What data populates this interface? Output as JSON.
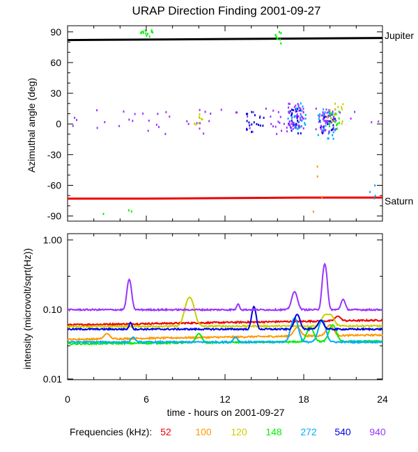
{
  "chart_data": {
    "title": "URAP Direction Finding  2001-09-27",
    "xlabel": "time - hours on 2001-09-27",
    "xlim": [
      0,
      24
    ],
    "xticks": [
      "0",
      "6",
      "12",
      "18",
      "24"
    ],
    "legend_prefix": "Frequencies (kHz):",
    "legend": [
      {
        "label": "52",
        "color": "#ee0000"
      },
      {
        "label": "100",
        "color": "#ff9900"
      },
      {
        "label": "120",
        "color": "#cccc00"
      },
      {
        "label": "148",
        "color": "#00ee00"
      },
      {
        "label": "272",
        "color": "#00aaff"
      },
      {
        "label": "540",
        "color": "#0000dd"
      },
      {
        "label": "940",
        "color": "#9933ff"
      }
    ],
    "charts": [
      {
        "type": "scatter",
        "ylabel": "Azimuthal angle (deg)",
        "ylim": [
          -95,
          96
        ],
        "yticks": [
          "90",
          "60",
          "30",
          "0",
          "-30",
          "-60",
          "-90"
        ],
        "lines": [
          {
            "name": "Jupiter",
            "color": "#000000",
            "x": [
              0,
              6,
              12,
              18,
              24
            ],
            "y": [
              82,
              82.5,
              83,
              83.5,
              84
            ]
          },
          {
            "name": "Saturn",
            "color": "#ee0000",
            "x": [
              0,
              6,
              12,
              18,
              24
            ],
            "y": [
              -73,
              -73,
              -72.5,
              -72,
              -72
            ]
          }
        ],
        "clusters": [
          {
            "freq": "940",
            "x": [
              0.2,
              23.8
            ],
            "y": [
              -10,
              15
            ],
            "n": 70
          },
          {
            "freq": "540",
            "x": [
              13.5,
              15.0
            ],
            "y": [
              -8,
              12
            ],
            "n": 18
          },
          {
            "freq": "540",
            "x": [
              16.8,
              17.8
            ],
            "y": [
              -10,
              15
            ],
            "n": 28
          },
          {
            "freq": "540",
            "x": [
              19.2,
              20.5
            ],
            "y": [
              -10,
              10
            ],
            "n": 26
          },
          {
            "freq": "940",
            "x": [
              16.8,
              18.0
            ],
            "y": [
              -5,
              20
            ],
            "n": 45
          },
          {
            "freq": "940",
            "x": [
              19.3,
              20.5
            ],
            "y": [
              -8,
              15
            ],
            "n": 40
          },
          {
            "freq": "272",
            "x": [
              16.8,
              18.2
            ],
            "y": [
              -5,
              22
            ],
            "n": 22
          },
          {
            "freq": "272",
            "x": [
              19.0,
              20.5
            ],
            "y": [
              -15,
              15
            ],
            "n": 22
          },
          {
            "freq": "148",
            "x": [
              19.8,
              20.8
            ],
            "y": [
              -5,
              12
            ],
            "n": 14
          },
          {
            "freq": "120",
            "x": [
              19.8,
              21.0
            ],
            "y": [
              0,
              20
            ],
            "n": 14
          },
          {
            "freq": "120",
            "x": [
              9.5,
              10.3
            ],
            "y": [
              -5,
              10
            ],
            "n": 8
          },
          {
            "freq": "148",
            "x": [
              5.5,
              6.5
            ],
            "y": [
              85,
              92
            ],
            "n": 12
          },
          {
            "freq": "148",
            "x": [
              15.8,
              16.3
            ],
            "y": [
              78,
              92
            ],
            "n": 8
          },
          {
            "freq": "272",
            "x": [
              22.8,
              23.5
            ],
            "y": [
              -75,
              -55
            ],
            "n": 4
          },
          {
            "freq": "100",
            "x": [
              18.5,
              19.5
            ],
            "y": [
              -90,
              -40
            ],
            "n": 4
          },
          {
            "freq": "148",
            "x": [
              2.5,
              5.5
            ],
            "y": [
              -90,
              -75
            ],
            "n": 3
          }
        ]
      },
      {
        "type": "line",
        "ylabel": "intensity (microvolt/sqrt(Hz))",
        "ylim": [
          0.01,
          1.2
        ],
        "yscale": "log",
        "yticks": [
          "1.00",
          "0.10",
          "0.01"
        ],
        "series": [
          {
            "name": "52",
            "color": "#ee0000",
            "base": 0.06,
            "end": 0.07,
            "spikes": [
              [
                20.6,
                0.08,
                0.4
              ]
            ]
          },
          {
            "name": "100",
            "color": "#ff9900",
            "base": 0.037,
            "end": 0.043,
            "spikes": [
              [
                3.0,
                0.045,
                0.4
              ],
              [
                17.5,
                0.055,
                0.5
              ],
              [
                20.0,
                0.06,
                0.5
              ]
            ]
          },
          {
            "name": "120",
            "color": "#cccc00",
            "base": 0.057,
            "end": 0.058,
            "spikes": [
              [
                9.3,
                0.15,
                0.6
              ],
              [
                19.7,
                0.085,
                0.6
              ],
              [
                20.0,
                0.085,
                0.5
              ]
            ]
          },
          {
            "name": "148",
            "color": "#00ee00",
            "base": 0.032,
            "end": 0.035,
            "spikes": [
              [
                10.0,
                0.045,
                0.4
              ],
              [
                18.5,
                0.055,
                0.5
              ],
              [
                20.2,
                0.06,
                0.5
              ]
            ]
          },
          {
            "name": "272",
            "color": "#00aaff",
            "base": 0.034,
            "end": 0.034,
            "spikes": [
              [
                5.0,
                0.04,
                0.3
              ],
              [
                12.8,
                0.04,
                0.3
              ],
              [
                17.3,
                0.075,
                0.5
              ],
              [
                19.4,
                0.07,
                0.5
              ]
            ]
          },
          {
            "name": "540",
            "color": "#0000dd",
            "base": 0.052,
            "end": 0.052,
            "spikes": [
              [
                4.8,
                0.065,
                0.2
              ],
              [
                14.2,
                0.11,
                0.3
              ],
              [
                17.5,
                0.085,
                0.4
              ],
              [
                19.3,
                0.07,
                0.4
              ]
            ]
          },
          {
            "name": "940",
            "color": "#9933ff",
            "base": 0.099,
            "end": 0.099,
            "spikes": [
              [
                4.7,
                0.27,
                0.3
              ],
              [
                13.0,
                0.12,
                0.2
              ],
              [
                17.3,
                0.18,
                0.4
              ],
              [
                19.6,
                0.45,
                0.3
              ],
              [
                21.0,
                0.14,
                0.3
              ]
            ]
          }
        ]
      }
    ],
    "annotations": {
      "jupiter": "Jupiter",
      "saturn": "Saturn"
    }
  }
}
